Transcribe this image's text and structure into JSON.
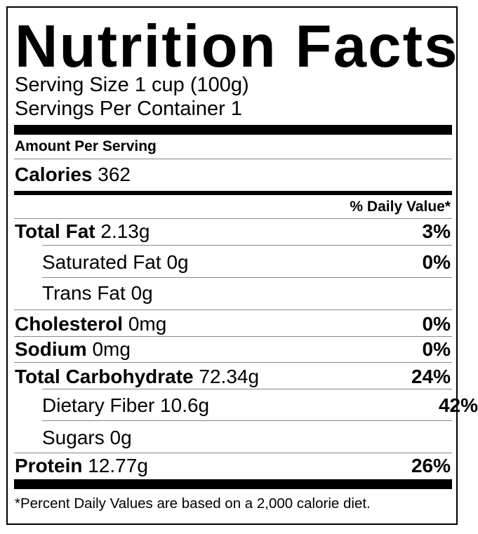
{
  "title": "Nutrition Facts",
  "serving_size": "Serving Size 1 cup (100g)",
  "servings_per_container": "Servings Per Container 1",
  "amount_per_serving": "Amount Per Serving",
  "calories": {
    "label": "Calories",
    "value": "362"
  },
  "daily_value_header": "% Daily Value*",
  "nutrients": [
    {
      "label": "Total Fat",
      "amount": "2.13g",
      "dv": "3%"
    },
    {
      "label": "Saturated Fat",
      "amount": "0g",
      "dv": "0%"
    },
    {
      "label": "Trans Fat",
      "amount": "0g",
      "dv": ""
    },
    {
      "label": "Cholesterol",
      "amount": "0mg",
      "dv": "0%"
    },
    {
      "label": "Sodium",
      "amount": "0mg",
      "dv": "0%"
    },
    {
      "label": "Total Carbohydrate",
      "amount": "72.34g",
      "dv": "24%"
    },
    {
      "label": "Dietary Fiber",
      "amount": "10.6g",
      "dv": "42%"
    },
    {
      "label": "Sugars",
      "amount": "0g",
      "dv": ""
    },
    {
      "label": "Protein",
      "amount": "12.77g",
      "dv": "26%"
    }
  ],
  "footnote": "*Percent Daily Values are based on a 2,000 calorie diet."
}
